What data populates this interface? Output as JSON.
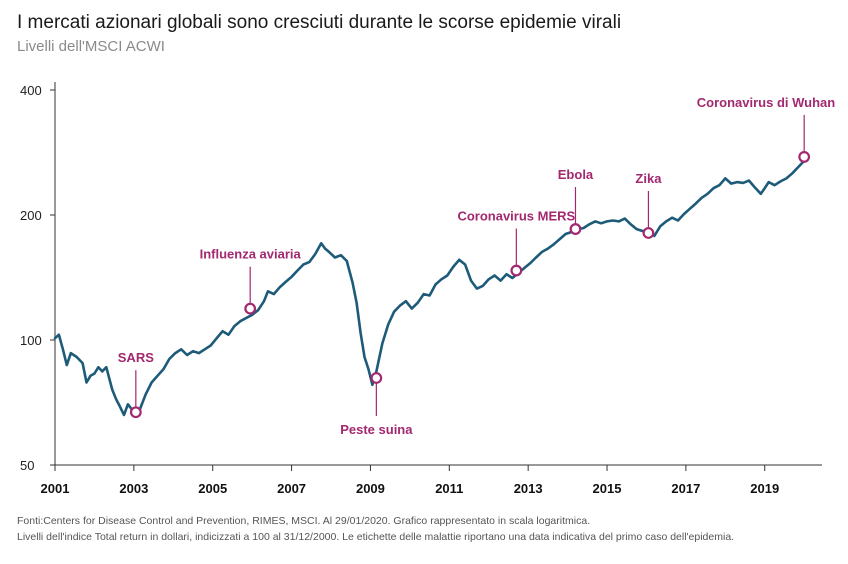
{
  "chart_data": {
    "type": "line",
    "title": "I mercati azionari globali sono cresciuti durante le scorse epidemie virali",
    "subtitle": "Livelli dell'MSCI ACWI",
    "xlabel": "",
    "ylabel": "",
    "yscale": "log",
    "ylim": [
      50,
      400
    ],
    "xlim": [
      2001,
      2020.3
    ],
    "yticks": [
      50,
      100,
      200,
      400
    ],
    "xticks": [
      2001,
      2003,
      2005,
      2007,
      2009,
      2011,
      2013,
      2015,
      2017,
      2019
    ],
    "grid": false,
    "line_color": "#1d5b79",
    "annotation_color": "#a2286f",
    "series": [
      {
        "x": [
          2001.0,
          2001.1,
          2001.2,
          2001.3,
          2001.4,
          2001.55,
          2001.7,
          2001.8,
          2001.9,
          2002.0,
          2002.1,
          2002.2,
          2002.3,
          2002.45,
          2002.55,
          2002.65,
          2002.75,
          2002.85,
          2002.95,
          2003.05,
          2003.15,
          2003.3,
          2003.45,
          2003.6,
          2003.75,
          2003.9,
          2004.05,
          2004.2,
          2004.35,
          2004.5,
          2004.65,
          2004.8,
          2004.95,
          2005.1,
          2005.25,
          2005.4,
          2005.55,
          2005.7,
          2005.85,
          2006.0,
          2006.15,
          2006.3,
          2006.4,
          2006.55,
          2006.7,
          2006.85,
          2007.0,
          2007.15,
          2007.3,
          2007.45,
          2007.6,
          2007.75,
          2007.85,
          2007.95,
          2008.1,
          2008.25,
          2008.4,
          2008.55,
          2008.65,
          2008.75,
          2008.85,
          2008.95,
          2009.05,
          2009.15,
          2009.3,
          2009.45,
          2009.6,
          2009.75,
          2009.9,
          2010.05,
          2010.2,
          2010.35,
          2010.5,
          2010.65,
          2010.8,
          2010.95,
          2011.1,
          2011.25,
          2011.4,
          2011.55,
          2011.7,
          2011.85,
          2012.0,
          2012.15,
          2012.3,
          2012.45,
          2012.6,
          2012.75,
          2012.9,
          2013.05,
          2013.2,
          2013.35,
          2013.5,
          2013.65,
          2013.8,
          2013.95,
          2014.1,
          2014.25,
          2014.4,
          2014.55,
          2014.7,
          2014.85,
          2015.0,
          2015.15,
          2015.3,
          2015.45,
          2015.6,
          2015.75,
          2015.9,
          2016.05,
          2016.2,
          2016.35,
          2016.5,
          2016.65,
          2016.8,
          2016.95,
          2017.1,
          2017.25,
          2017.4,
          2017.55,
          2017.7,
          2017.85,
          2018.0,
          2018.15,
          2018.3,
          2018.45,
          2018.6,
          2018.75,
          2018.9,
          2019.0,
          2019.1,
          2019.25,
          2019.4,
          2019.55,
          2019.7,
          2019.85,
          2020.0,
          2020.08
        ],
        "values": [
          101,
          103,
          95,
          87,
          93,
          91,
          88,
          79,
          82,
          83,
          86,
          84,
          86,
          76,
          72,
          69,
          66,
          70,
          68,
          66,
          68,
          74,
          79,
          82,
          85,
          90,
          93,
          95,
          92,
          94,
          93,
          95,
          97,
          101,
          105,
          103,
          108,
          111,
          113,
          115,
          118,
          124,
          131,
          129,
          134,
          138,
          142,
          147,
          152,
          154,
          161,
          171,
          166,
          163,
          158,
          160,
          155,
          137,
          123,
          104,
          91,
          85,
          78,
          84,
          98,
          109,
          117,
          121,
          124,
          119,
          123,
          129,
          128,
          136,
          140,
          143,
          150,
          156,
          152,
          139,
          133,
          135,
          140,
          143,
          139,
          144,
          141,
          145,
          149,
          153,
          158,
          163,
          166,
          170,
          175,
          180,
          182,
          185,
          186,
          190,
          193,
          191,
          193,
          194,
          193,
          196,
          190,
          185,
          183,
          184,
          178,
          188,
          193,
          197,
          194,
          201,
          207,
          213,
          220,
          225,
          232,
          236,
          245,
          238,
          240,
          239,
          242,
          233,
          225,
          232,
          240,
          236,
          241,
          245,
          252,
          261,
          270,
          277
        ]
      }
    ],
    "annotations": [
      {
        "label": "SARS",
        "x": 2003.05,
        "y": 67,
        "label_pos": "above"
      },
      {
        "label": "Influenza aviaria",
        "x": 2005.95,
        "y": 119,
        "label_pos": "above"
      },
      {
        "label": "Peste suina",
        "x": 2009.15,
        "y": 81,
        "label_pos": "below"
      },
      {
        "label": "Coronavirus MERS",
        "x": 2012.7,
        "y": 147,
        "label_pos": "above"
      },
      {
        "label": "Ebola",
        "x": 2014.2,
        "y": 185,
        "label_pos": "above"
      },
      {
        "label": "Zika",
        "x": 2016.05,
        "y": 181,
        "label_pos": "above"
      },
      {
        "label": "Coronavirus di Wuhan",
        "x": 2020.0,
        "y": 276,
        "label_pos": "above"
      }
    ]
  },
  "footer": {
    "line1": "Fonti:Centers for Disease Control and Prevention, RIMES, MSCI. Al 29/01/2020. Grafico rappresentato in scala logaritmica.",
    "line2": "Livelli dell'indice Total return in dollari, indicizzati a 100 al 31/12/2000. Le etichette delle malattie riportano una data indicativa del primo caso dell'epidemia."
  }
}
